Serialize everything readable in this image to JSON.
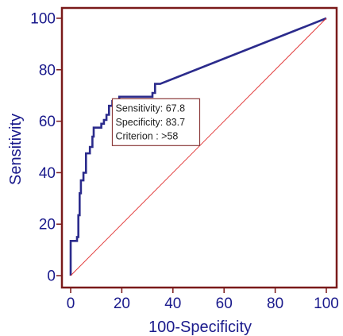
{
  "chart_data": {
    "type": "line",
    "xlabel": "100-Specificity",
    "ylabel": "Sensitivity",
    "xlim": [
      0,
      100
    ],
    "ylim": [
      0,
      100
    ],
    "x_ticks": [
      0,
      20,
      40,
      60,
      80,
      100
    ],
    "y_ticks": [
      0,
      20,
      40,
      60,
      80,
      100
    ],
    "series": [
      {
        "color": "#2b2b8c",
        "x": [
          0,
          0,
          2.5,
          2.5,
          3,
          3,
          3.5,
          3.5,
          4,
          4,
          5,
          5,
          6,
          6,
          7.5,
          7.5,
          8.5,
          8.5,
          9,
          9,
          12,
          12,
          13,
          13,
          14,
          14,
          15,
          15,
          16.3,
          16.3,
          19,
          19,
          32,
          32,
          33,
          33,
          35,
          100
        ],
        "y": [
          0,
          13.5,
          13.5,
          15,
          15,
          23.5,
          23.5,
          32,
          32,
          37,
          37,
          40,
          40,
          47.5,
          47.5,
          50,
          50,
          54,
          54,
          57.5,
          57.5,
          59,
          59,
          60.5,
          60.5,
          62.5,
          62.5,
          66,
          66,
          67.8,
          67.8,
          69.5,
          69.5,
          71,
          71,
          74.5,
          74.5,
          100
        ]
      },
      {
        "color": "#e03030",
        "x": [
          0,
          100
        ],
        "y": [
          0,
          100
        ]
      }
    ],
    "annotation": {
      "lines": [
        "Sensitivity: 67.8",
        "Specificity: 83.7",
        "Criterion : >58"
      ],
      "x": 16.3,
      "y": 67.8
    },
    "frame_color": "#7a1a1a",
    "text_color": "#1a1a8c"
  }
}
